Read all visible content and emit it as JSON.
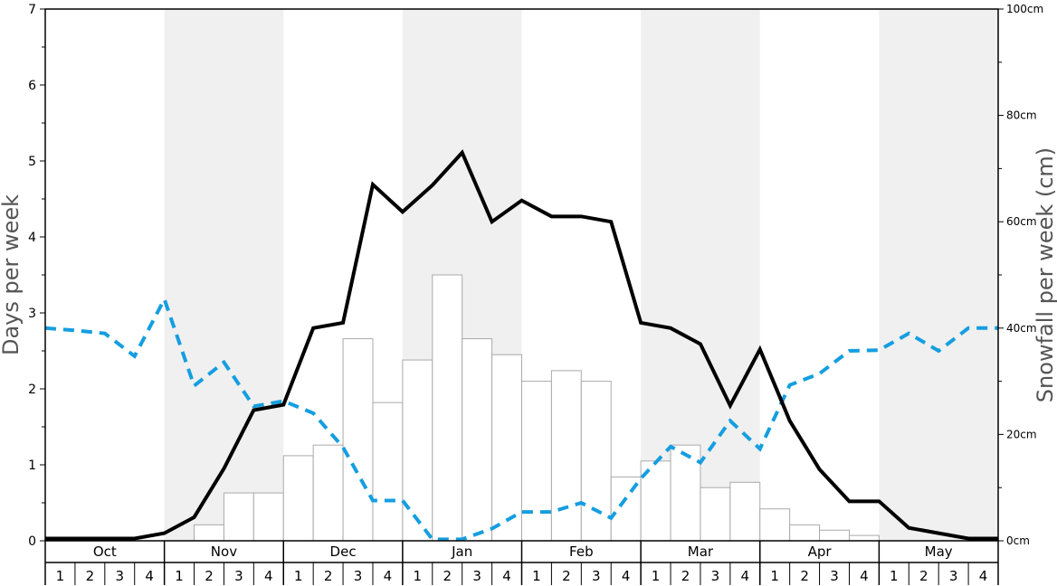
{
  "chart_data": {
    "type": "bar",
    "left_axis": {
      "label": "Days per week",
      "ticks": [
        "0",
        "1",
        "2",
        "3",
        "4",
        "5",
        "6",
        "7"
      ],
      "range": [
        0,
        7
      ]
    },
    "right_axis": {
      "label": "Snowfall per week (cm)",
      "ticks": [
        "0cm",
        "20cm",
        "40cm",
        "60cm",
        "80cm",
        "100cm"
      ],
      "range": [
        0,
        100
      ]
    },
    "months": [
      "Oct",
      "Nov",
      "Dec",
      "Jan",
      "Feb",
      "Mar",
      "Apr",
      "May"
    ],
    "weeks": [
      "1",
      "2",
      "3",
      "4"
    ],
    "snowfall_bars_cm": [
      0,
      0,
      0,
      0,
      0,
      3,
      9,
      9,
      16,
      18,
      38,
      26,
      34,
      50,
      38,
      35,
      30,
      32,
      30,
      12,
      15,
      18,
      10,
      11,
      6,
      3,
      2,
      1,
      0,
      0,
      0,
      0
    ],
    "snow_days_per_week": [
      0.03,
      0.03,
      0.03,
      0.03,
      0.1,
      0.31,
      0.95,
      1.72,
      1.79,
      2.8,
      2.87,
      4.69,
      4.33,
      4.68,
      5.11,
      4.2,
      4.48,
      4.27,
      4.27,
      4.2,
      2.87,
      2.8,
      2.59,
      1.78,
      2.52,
      1.58,
      0.94,
      0.52,
      0.52,
      0.17,
      0.1,
      0.03,
      0.03
    ],
    "dashed_line_days_per_week": [
      2.8,
      2.77,
      2.73,
      2.43,
      3.18,
      2.04,
      2.35,
      1.77,
      1.84,
      1.68,
      1.23,
      0.53,
      0.53,
      0.02,
      0.02,
      0.16,
      0.38,
      0.38,
      0.5,
      0.3,
      0.82,
      1.24,
      1.03,
      1.58,
      1.21,
      2.05,
      2.2,
      2.5,
      2.51,
      2.73,
      2.5,
      2.8,
      2.8
    ],
    "colors": {
      "snow_days_line": "#000000",
      "dashed_line": "#159ee0",
      "bar_fill": "#ffffff",
      "bar_stroke": "#aaaaaa",
      "shade": "#f0f0f0"
    }
  }
}
